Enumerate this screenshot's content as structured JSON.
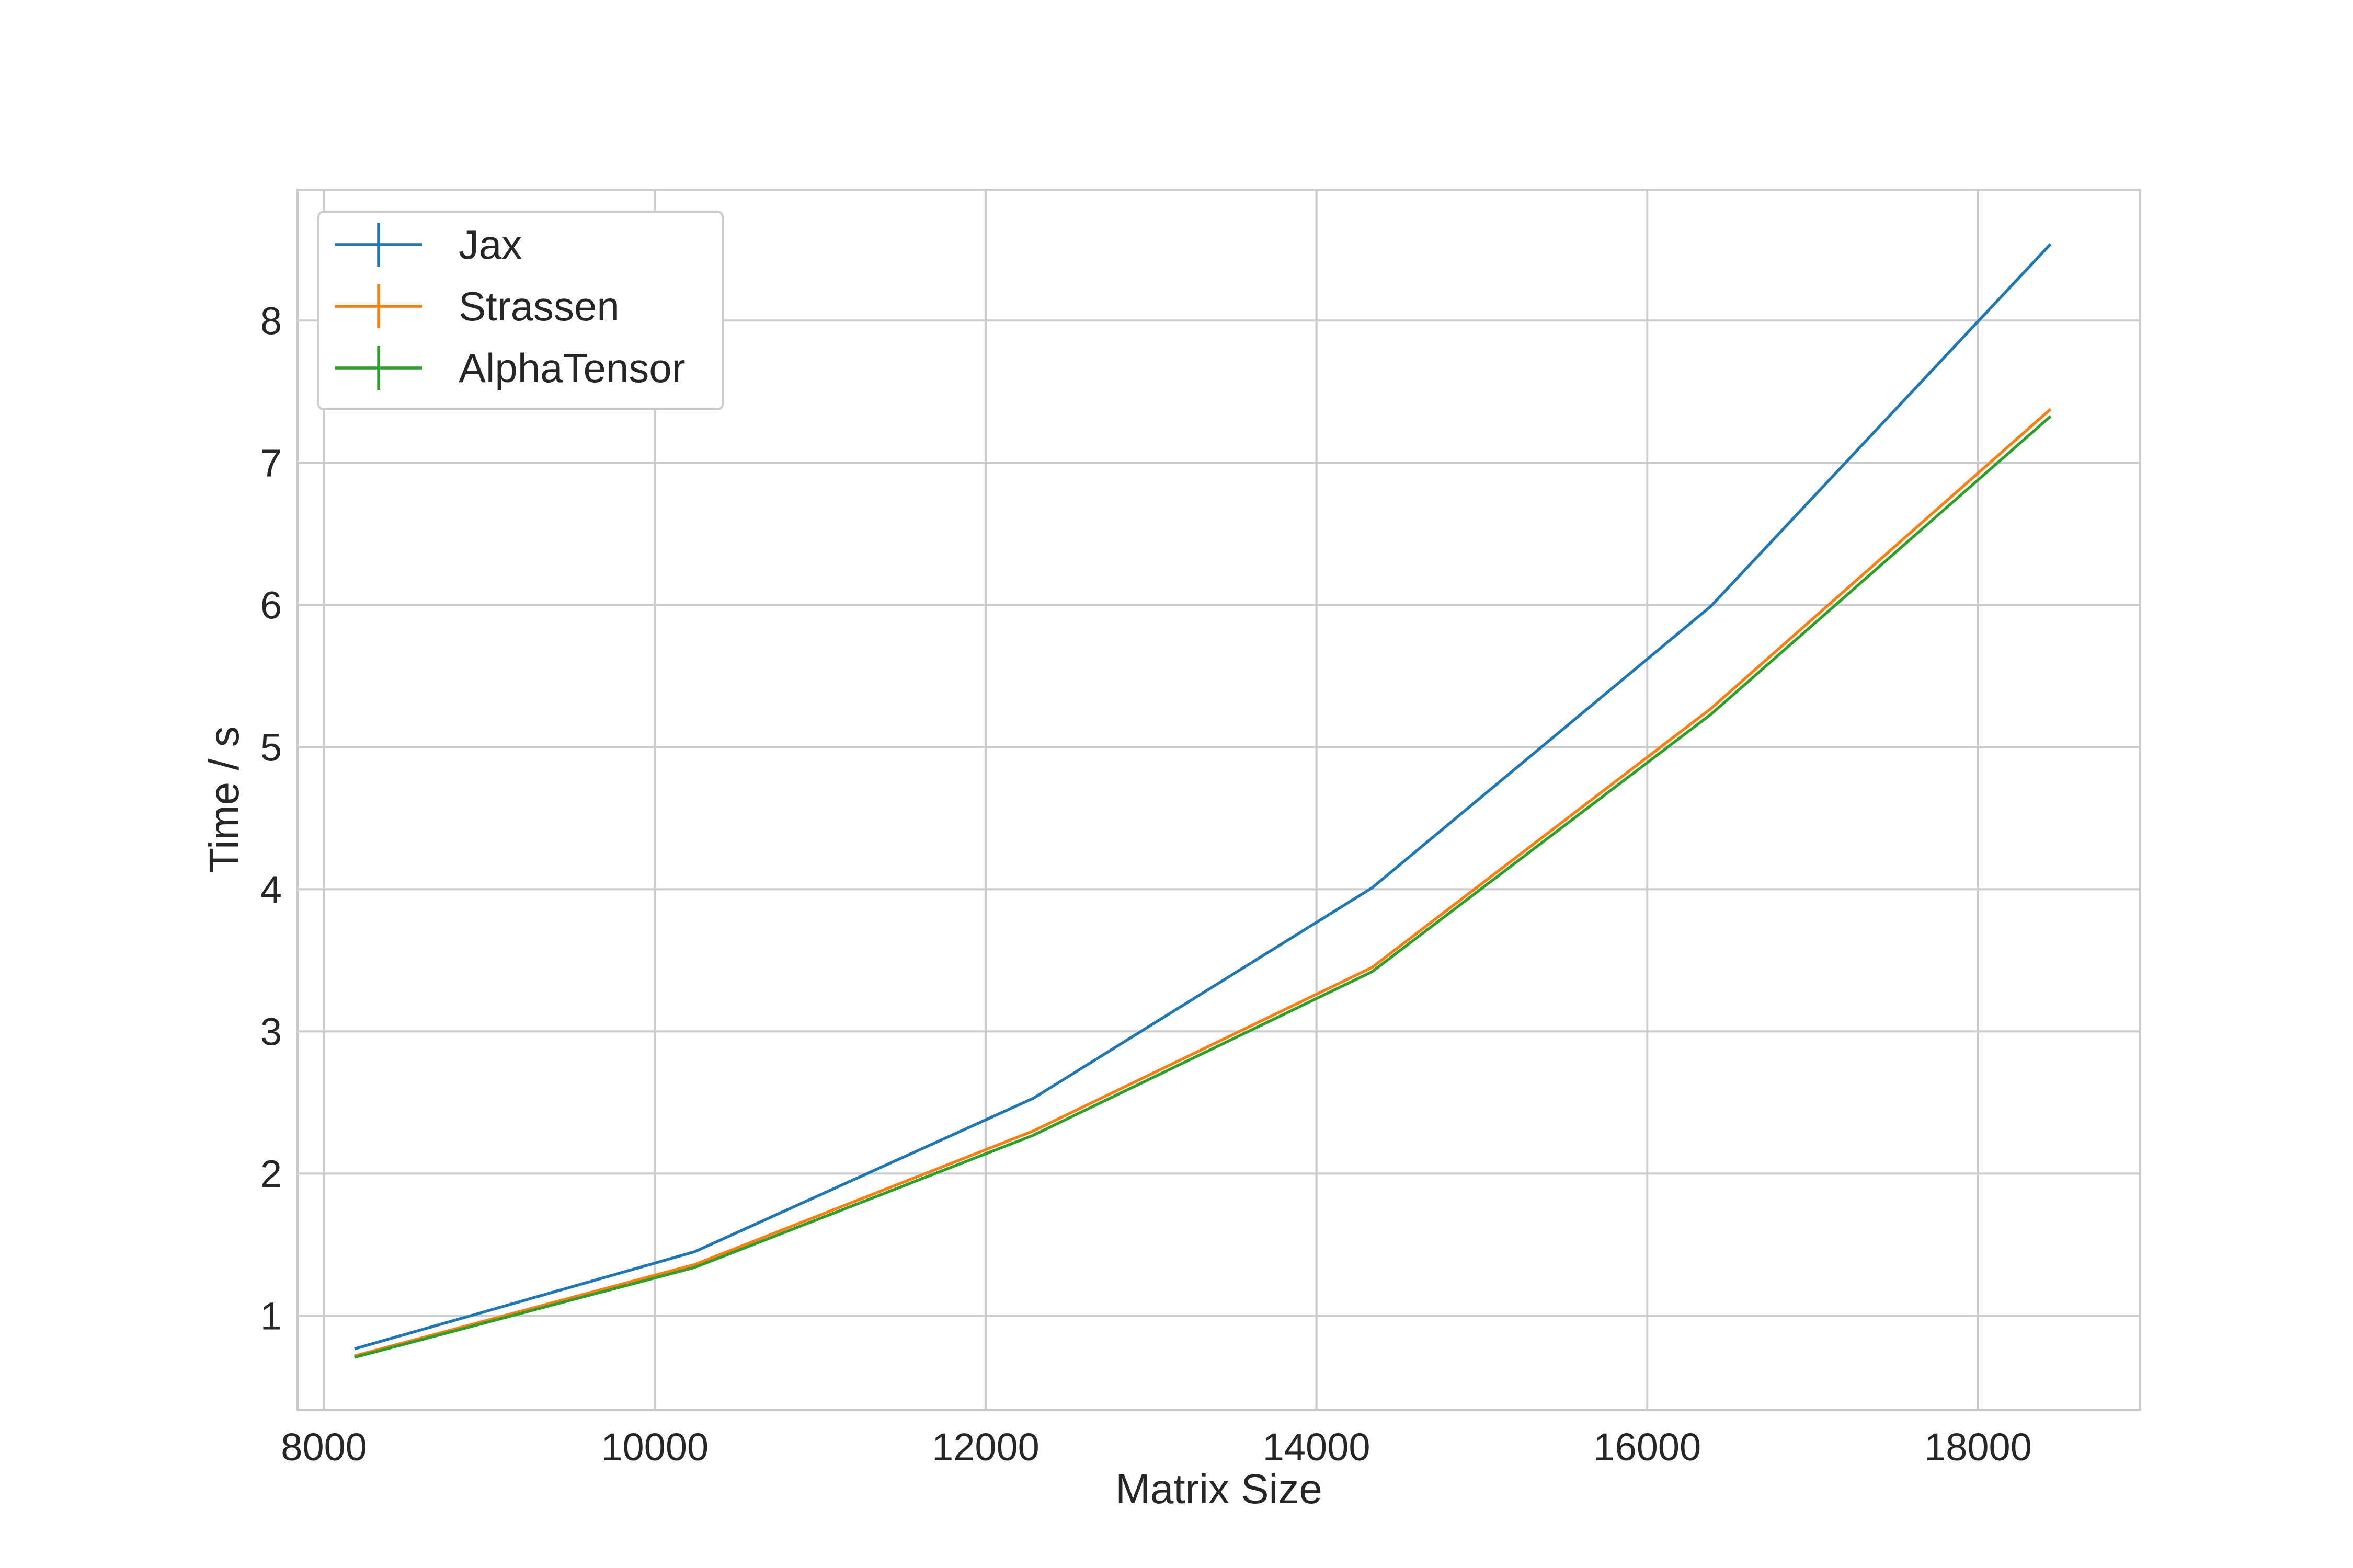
{
  "chart_data": {
    "type": "line",
    "title": "",
    "xlabel": "Matrix Size",
    "ylabel": "Time / s",
    "x": [
      8192,
      10240,
      12288,
      14336,
      16384,
      18432
    ],
    "xlim": [
      7840,
      18980
    ],
    "ylim": [
      0.34,
      8.92
    ],
    "xticks": [
      8000,
      10000,
      12000,
      14000,
      16000,
      18000
    ],
    "yticks": [
      1,
      2,
      3,
      4,
      5,
      6,
      7,
      8
    ],
    "grid": true,
    "legend_position": "top-left",
    "series": [
      {
        "name": "Jax",
        "color": "#1f77b4",
        "values": [
          0.77,
          1.45,
          2.53,
          4.01,
          5.99,
          8.53
        ]
      },
      {
        "name": "Strassen",
        "color": "#ff7f0e",
        "values": [
          0.72,
          1.36,
          2.3,
          3.45,
          5.27,
          7.37
        ]
      },
      {
        "name": "AlphaTensor",
        "color": "#2ca02c",
        "values": [
          0.71,
          1.34,
          2.27,
          3.42,
          5.23,
          7.32
        ]
      }
    ]
  }
}
